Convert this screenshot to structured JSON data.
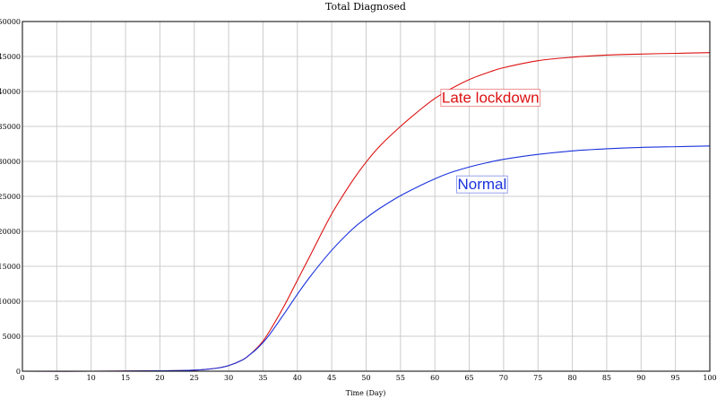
{
  "chart_data": {
    "type": "line",
    "title": "Total Diagnosed",
    "xlabel": "Time (Day)",
    "ylabel": "",
    "xlim": [
      0,
      100
    ],
    "ylim": [
      0,
      50000
    ],
    "xticks": [
      0,
      5,
      10,
      15,
      20,
      25,
      30,
      35,
      40,
      45,
      50,
      55,
      60,
      65,
      70,
      75,
      80,
      85,
      90,
      95,
      100
    ],
    "yticks": [
      0,
      5000,
      10000,
      15000,
      20000,
      25000,
      30000,
      35000,
      40000,
      45000,
      50000
    ],
    "grid": true,
    "series": [
      {
        "name": "Late lockdown",
        "color": "#dd1111",
        "x": [
          0,
          10,
          20,
          25,
          28,
          30,
          32,
          33,
          34,
          35,
          36,
          38,
          40,
          42,
          45,
          48,
          50,
          52,
          55,
          58,
          60,
          62,
          65,
          68,
          70,
          75,
          80,
          85,
          90,
          95,
          100
        ],
        "y": [
          0,
          0,
          50,
          150,
          400,
          800,
          1600,
          2300,
          3200,
          4300,
          5800,
          9200,
          13000,
          16800,
          22500,
          27200,
          29900,
          32200,
          35000,
          37500,
          39000,
          40200,
          41700,
          42800,
          43400,
          44400,
          44900,
          45200,
          45350,
          45450,
          45550
        ]
      },
      {
        "name": "Normal",
        "color": "#1a32dd",
        "x": [
          0,
          10,
          20,
          25,
          28,
          30,
          32,
          33,
          34,
          35,
          36,
          38,
          40,
          42,
          45,
          48,
          50,
          52,
          55,
          58,
          60,
          62,
          65,
          68,
          70,
          75,
          80,
          85,
          90,
          95,
          100
        ],
        "y": [
          0,
          0,
          50,
          150,
          400,
          800,
          1600,
          2300,
          3100,
          4100,
          5300,
          8100,
          11000,
          13700,
          17300,
          20300,
          21900,
          23300,
          25100,
          26600,
          27500,
          28300,
          29200,
          29900,
          30300,
          31000,
          31500,
          31800,
          32000,
          32100,
          32200
        ]
      }
    ],
    "annotations": [
      {
        "text": "Late lockdown",
        "x": 61,
        "y": 38400,
        "color": "#dd1111"
      },
      {
        "text": "Normal",
        "x": 63.3,
        "y": 26000,
        "color": "#1a32dd"
      }
    ]
  }
}
